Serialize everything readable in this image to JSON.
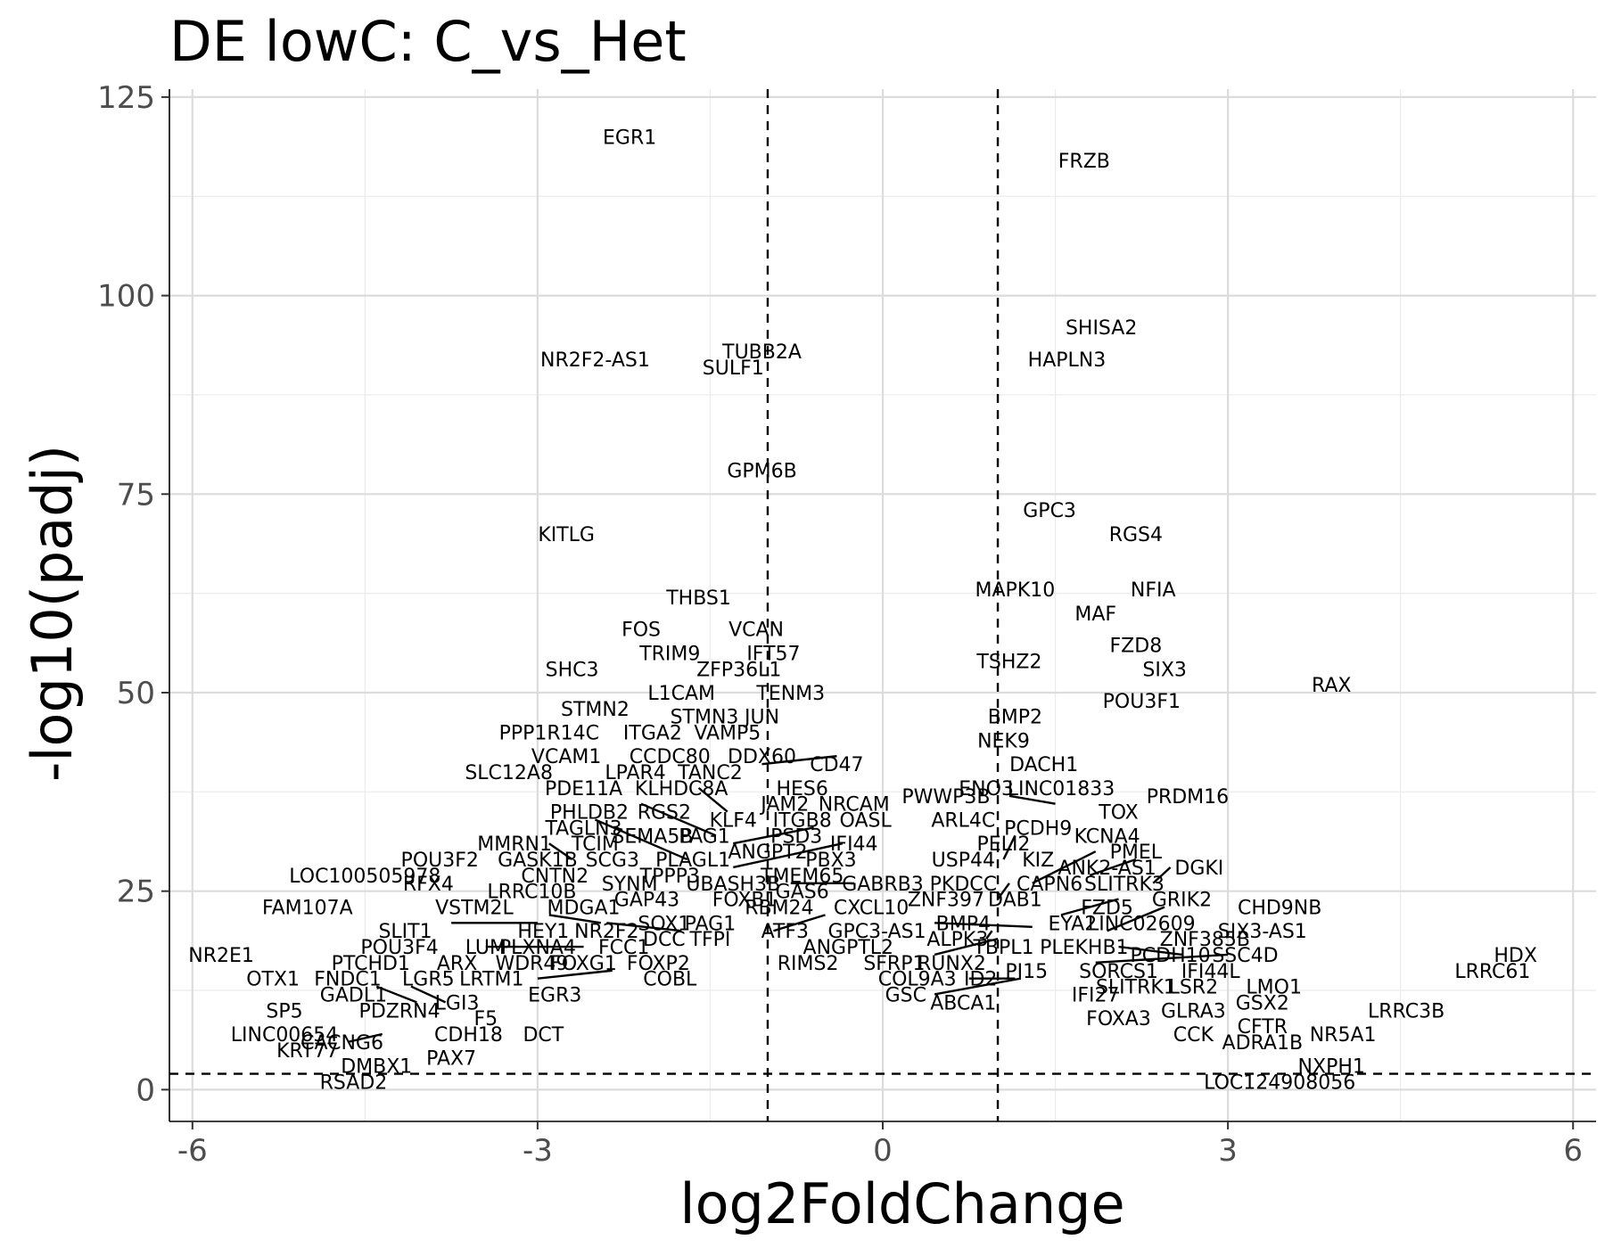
{
  "chart_data": {
    "type": "scatter",
    "title": "DE lowC: C_vs_Het",
    "xlabel": "log2FoldChange",
    "ylabel": "-log10(padj)",
    "xlim": [
      -6.2,
      6.2
    ],
    "ylim": [
      -4,
      126
    ],
    "xticks": [
      -6,
      -3,
      0,
      3,
      6
    ],
    "xtick_labels": [
      "-6",
      "-3",
      "0",
      "3",
      "6"
    ],
    "yticks": [
      0,
      25,
      50,
      75,
      100,
      125
    ],
    "ytick_labels": [
      "0",
      "25",
      "50",
      "75",
      "100",
      "125"
    ],
    "thresholds": {
      "vertical": [
        -1,
        1
      ],
      "horizontal": 2
    },
    "grid": true,
    "legend": "none",
    "points": [
      {
        "gene": "EGR1",
        "x": -2.2,
        "y": 120
      },
      {
        "gene": "FRZB",
        "x": 1.75,
        "y": 117
      },
      {
        "gene": "SHISA2",
        "x": 1.9,
        "y": 96
      },
      {
        "gene": "TUBB2A",
        "x": -1.05,
        "y": 93
      },
      {
        "gene": "NR2F2-AS1",
        "x": -2.5,
        "y": 92
      },
      {
        "gene": "HAPLN3",
        "x": 1.6,
        "y": 92
      },
      {
        "gene": "SULF1",
        "x": -1.3,
        "y": 91
      },
      {
        "gene": "GPM6B",
        "x": -1.05,
        "y": 78
      },
      {
        "gene": "GPC3",
        "x": 1.45,
        "y": 73
      },
      {
        "gene": "RGS4",
        "x": 2.2,
        "y": 70
      },
      {
        "gene": "KITLG",
        "x": -2.75,
        "y": 70
      },
      {
        "gene": "NFIA",
        "x": 2.35,
        "y": 63
      },
      {
        "gene": "MAPK10",
        "x": 1.15,
        "y": 63
      },
      {
        "gene": "THBS1",
        "x": -1.6,
        "y": 62
      },
      {
        "gene": "MAF",
        "x": 1.85,
        "y": 60
      },
      {
        "gene": "FOS",
        "x": -2.1,
        "y": 58
      },
      {
        "gene": "VCAN",
        "x": -1.1,
        "y": 58
      },
      {
        "gene": "FZD8",
        "x": 2.2,
        "y": 56
      },
      {
        "gene": "TRIM9",
        "x": -1.85,
        "y": 55
      },
      {
        "gene": "IFT57",
        "x": -0.95,
        "y": 55
      },
      {
        "gene": "TSHZ2",
        "x": 1.1,
        "y": 54
      },
      {
        "gene": "SIX3",
        "x": 2.45,
        "y": 53
      },
      {
        "gene": "SHC3",
        "x": -2.7,
        "y": 53
      },
      {
        "gene": "ZFP36L1",
        "x": -1.25,
        "y": 53
      },
      {
        "gene": "RAX",
        "x": 3.9,
        "y": 51
      },
      {
        "gene": "L1CAM",
        "x": -1.75,
        "y": 50
      },
      {
        "gene": "TENM3",
        "x": -0.8,
        "y": 50
      },
      {
        "gene": "POU3F1",
        "x": 2.25,
        "y": 49
      },
      {
        "gene": "STMN2",
        "x": -2.5,
        "y": 48
      },
      {
        "gene": "STMN3",
        "x": -1.55,
        "y": 47
      },
      {
        "gene": "JUN",
        "x": -1.05,
        "y": 47
      },
      {
        "gene": "BMP2",
        "x": 1.15,
        "y": 47
      },
      {
        "gene": "PPP1R14C",
        "x": -2.9,
        "y": 45
      },
      {
        "gene": "ITGA2",
        "x": -2.0,
        "y": 45
      },
      {
        "gene": "VAMP5",
        "x": -1.35,
        "y": 45
      },
      {
        "gene": "NEK9",
        "x": 1.05,
        "y": 44
      },
      {
        "gene": "VCAM1",
        "x": -2.75,
        "y": 42
      },
      {
        "gene": "CCDC80",
        "x": -1.85,
        "y": 42
      },
      {
        "gene": "DDX60",
        "x": -1.05,
        "y": 42
      },
      {
        "gene": "DACH1",
        "x": 1.4,
        "y": 41
      },
      {
        "gene": "CD47",
        "x": -0.4,
        "y": 41
      },
      {
        "gene": "SLC12A8",
        "x": -3.25,
        "y": 40
      },
      {
        "gene": "LPAR4",
        "x": -2.15,
        "y": 40
      },
      {
        "gene": "TANC2",
        "x": -1.5,
        "y": 40
      },
      {
        "gene": "HES6",
        "x": -0.7,
        "y": 38
      },
      {
        "gene": "ENO3",
        "x": 0.9,
        "y": 38
      },
      {
        "gene": "LINC01833",
        "x": 1.55,
        "y": 38
      },
      {
        "gene": "PDE11A",
        "x": -2.6,
        "y": 38
      },
      {
        "gene": "KLHDC8A",
        "x": -1.75,
        "y": 38
      },
      {
        "gene": "PRDM16",
        "x": 2.65,
        "y": 37
      },
      {
        "gene": "PWWP3B",
        "x": 0.55,
        "y": 37
      },
      {
        "gene": "JAM2",
        "x": -0.85,
        "y": 36
      },
      {
        "gene": "NRCAM",
        "x": -0.25,
        "y": 36
      },
      {
        "gene": "TOX",
        "x": 2.05,
        "y": 35
      },
      {
        "gene": "PHLDB2",
        "x": -2.55,
        "y": 35
      },
      {
        "gene": "RGS2",
        "x": -1.9,
        "y": 35
      },
      {
        "gene": "KLF4",
        "x": -1.3,
        "y": 34
      },
      {
        "gene": "ITGB8",
        "x": -0.7,
        "y": 34
      },
      {
        "gene": "OASL",
        "x": -0.15,
        "y": 34
      },
      {
        "gene": "ARL4C",
        "x": 0.7,
        "y": 34
      },
      {
        "gene": "TAGLN3",
        "x": -2.6,
        "y": 33
      },
      {
        "gene": "PCDH9",
        "x": 1.35,
        "y": 33
      },
      {
        "gene": "KCNA4",
        "x": 1.95,
        "y": 32
      },
      {
        "gene": "SEMA5B",
        "x": -2.0,
        "y": 32
      },
      {
        "gene": "PAG1",
        "x": -1.55,
        "y": 32
      },
      {
        "gene": "PSD3",
        "x": -0.75,
        "y": 32
      },
      {
        "gene": "IFI44",
        "x": -0.25,
        "y": 31
      },
      {
        "gene": "MMRN1",
        "x": -3.2,
        "y": 31
      },
      {
        "gene": "TCIM",
        "x": -2.5,
        "y": 31
      },
      {
        "gene": "PELI2",
        "x": 1.05,
        "y": 31
      },
      {
        "gene": "PMEL",
        "x": 2.2,
        "y": 30
      },
      {
        "gene": "POU3F2",
        "x": -3.85,
        "y": 29
      },
      {
        "gene": "GASK1B",
        "x": -3.0,
        "y": 29
      },
      {
        "gene": "SCG3",
        "x": -2.35,
        "y": 29
      },
      {
        "gene": "PLAGL1",
        "x": -1.65,
        "y": 29
      },
      {
        "gene": "ANGPT2",
        "x": -1.0,
        "y": 30
      },
      {
        "gene": "PBX3",
        "x": -0.45,
        "y": 29
      },
      {
        "gene": "USP44",
        "x": 0.7,
        "y": 29
      },
      {
        "gene": "KIZ",
        "x": 1.35,
        "y": 29
      },
      {
        "gene": "ANK2-AS1",
        "x": 1.95,
        "y": 28
      },
      {
        "gene": "DGKI",
        "x": 2.75,
        "y": 28
      },
      {
        "gene": "LOC100505978",
        "x": -4.5,
        "y": 27
      },
      {
        "gene": "CNTN2",
        "x": -2.85,
        "y": 27
      },
      {
        "gene": "TPPP3",
        "x": -1.85,
        "y": 27
      },
      {
        "gene": "TMEM65",
        "x": -0.7,
        "y": 27
      },
      {
        "gene": "SYNM",
        "x": -2.2,
        "y": 26
      },
      {
        "gene": "UBASH3B",
        "x": -1.3,
        "y": 26
      },
      {
        "gene": "PKDCC",
        "x": 0.7,
        "y": 26
      },
      {
        "gene": "CAPN6",
        "x": 1.45,
        "y": 26
      },
      {
        "gene": "SLITRK3",
        "x": 2.1,
        "y": 26
      },
      {
        "gene": "RFX4",
        "x": -3.95,
        "y": 26
      },
      {
        "gene": "GABRB3",
        "x": 0.0,
        "y": 26
      },
      {
        "gene": "LRRC10B",
        "x": -3.05,
        "y": 25
      },
      {
        "gene": "GAS6",
        "x": -0.7,
        "y": 25
      },
      {
        "gene": "ZNF397",
        "x": 0.55,
        "y": 24
      },
      {
        "gene": "DAB1",
        "x": 1.15,
        "y": 24
      },
      {
        "gene": "GRIK2",
        "x": 2.6,
        "y": 24
      },
      {
        "gene": "GAP43",
        "x": -2.05,
        "y": 24
      },
      {
        "gene": "FOXB1",
        "x": -1.2,
        "y": 24
      },
      {
        "gene": "CXCL10",
        "x": -0.1,
        "y": 23
      },
      {
        "gene": "FAM107A",
        "x": -5.0,
        "y": 23
      },
      {
        "gene": "CHD9NB",
        "x": 3.45,
        "y": 23
      },
      {
        "gene": "FZD5",
        "x": 1.95,
        "y": 23
      },
      {
        "gene": "VSTM2L",
        "x": -3.55,
        "y": 23
      },
      {
        "gene": "MDGA1",
        "x": -2.6,
        "y": 23
      },
      {
        "gene": "RBM24",
        "x": -0.9,
        "y": 23
      },
      {
        "gene": "EYA2",
        "x": 1.65,
        "y": 21
      },
      {
        "gene": "LINC02609",
        "x": 2.25,
        "y": 21
      },
      {
        "gene": "BMP4",
        "x": 0.7,
        "y": 21
      },
      {
        "gene": "SOX1",
        "x": -1.9,
        "y": 21
      },
      {
        "gene": "PAG1",
        "x": -1.5,
        "y": 21
      },
      {
        "gene": "SLIT1",
        "x": -4.15,
        "y": 20
      },
      {
        "gene": "HEY1",
        "x": -2.95,
        "y": 20
      },
      {
        "gene": "NR2F2",
        "x": -2.4,
        "y": 20
      },
      {
        "gene": "ATF3",
        "x": -0.85,
        "y": 20
      },
      {
        "gene": "GPC3-AS1",
        "x": -0.05,
        "y": 20
      },
      {
        "gene": "SIX3-AS1",
        "x": 3.3,
        "y": 20
      },
      {
        "gene": "ZNF385B",
        "x": 2.8,
        "y": 19
      },
      {
        "gene": "DCC",
        "x": -1.9,
        "y": 19
      },
      {
        "gene": "TFPI",
        "x": -1.5,
        "y": 19
      },
      {
        "gene": "ALPK3",
        "x": 0.65,
        "y": 19
      },
      {
        "gene": "POU3F4",
        "x": -4.2,
        "y": 18
      },
      {
        "gene": "LUM",
        "x": -3.45,
        "y": 18
      },
      {
        "gene": "PLXNA4",
        "x": -3.0,
        "y": 18
      },
      {
        "gene": "FCC1",
        "x": -2.25,
        "y": 18
      },
      {
        "gene": "ANGPTL2",
        "x": -0.3,
        "y": 18
      },
      {
        "gene": "TBPL1",
        "x": 1.05,
        "y": 18
      },
      {
        "gene": "PLEKHB1",
        "x": 1.75,
        "y": 18
      },
      {
        "gene": "PCDH10",
        "x": 2.5,
        "y": 17
      },
      {
        "gene": "SSC4D",
        "x": 3.15,
        "y": 17
      },
      {
        "gene": "NR2E1",
        "x": -5.75,
        "y": 17
      },
      {
        "gene": "HDX",
        "x": 5.5,
        "y": 17
      },
      {
        "gene": "FOXP2",
        "x": -1.95,
        "y": 16
      },
      {
        "gene": "RIMS2",
        "x": -0.65,
        "y": 16
      },
      {
        "gene": "SFRP1",
        "x": 0.1,
        "y": 16
      },
      {
        "gene": "RUNX2",
        "x": 0.6,
        "y": 16
      },
      {
        "gene": "PTCHD1",
        "x": -4.45,
        "y": 16
      },
      {
        "gene": "ARX",
        "x": -3.7,
        "y": 16
      },
      {
        "gene": "WDR49",
        "x": -3.05,
        "y": 16
      },
      {
        "gene": "FOXG1",
        "x": -2.6,
        "y": 16
      },
      {
        "gene": "PI15",
        "x": 1.25,
        "y": 15
      },
      {
        "gene": "IFI44L",
        "x": 2.85,
        "y": 15
      },
      {
        "gene": "SORCS1",
        "x": 2.05,
        "y": 15
      },
      {
        "gene": "LRRC61",
        "x": 5.3,
        "y": 15
      },
      {
        "gene": "COBL",
        "x": -1.85,
        "y": 14
      },
      {
        "gene": "OTX1",
        "x": -5.3,
        "y": 14
      },
      {
        "gene": "FNDC1",
        "x": -4.65,
        "y": 14
      },
      {
        "gene": "LGR5",
        "x": -3.95,
        "y": 14
      },
      {
        "gene": "LRTM1",
        "x": -3.4,
        "y": 14
      },
      {
        "gene": "COL9A3",
        "x": 0.3,
        "y": 14
      },
      {
        "gene": "ID2",
        "x": 0.85,
        "y": 14
      },
      {
        "gene": "GADL1",
        "x": -4.6,
        "y": 12
      },
      {
        "gene": "EGR3",
        "x": -2.85,
        "y": 12
      },
      {
        "gene": "SLITRK1",
        "x": 2.2,
        "y": 13
      },
      {
        "gene": "LSR2",
        "x": 2.7,
        "y": 13
      },
      {
        "gene": "LMO1",
        "x": 3.4,
        "y": 13
      },
      {
        "gene": "IFI27",
        "x": 1.85,
        "y": 12
      },
      {
        "gene": "GSC",
        "x": 0.2,
        "y": 12
      },
      {
        "gene": "ABCA1",
        "x": 0.7,
        "y": 11
      },
      {
        "gene": "LGI3",
        "x": -3.7,
        "y": 11
      },
      {
        "gene": "GSX2",
        "x": 3.3,
        "y": 11
      },
      {
        "gene": "SP5",
        "x": -5.2,
        "y": 10
      },
      {
        "gene": "PDZRN4",
        "x": -4.2,
        "y": 10
      },
      {
        "gene": "F5",
        "x": -3.45,
        "y": 9
      },
      {
        "gene": "GLRA3",
        "x": 2.7,
        "y": 10
      },
      {
        "gene": "LRRC3B",
        "x": 4.55,
        "y": 10
      },
      {
        "gene": "FOXA3",
        "x": 2.05,
        "y": 9
      },
      {
        "gene": "CFTR",
        "x": 3.3,
        "y": 8
      },
      {
        "gene": "LINC00654",
        "x": -5.2,
        "y": 7
      },
      {
        "gene": "CDH18",
        "x": -3.6,
        "y": 7
      },
      {
        "gene": "DCT",
        "x": -2.95,
        "y": 7
      },
      {
        "gene": "CCK",
        "x": 2.7,
        "y": 7
      },
      {
        "gene": "NR5A1",
        "x": 4.0,
        "y": 7
      },
      {
        "gene": "ADRA1B",
        "x": 3.3,
        "y": 6
      },
      {
        "gene": "CACNG6",
        "x": -4.7,
        "y": 6
      },
      {
        "gene": "KRT77",
        "x": -5.0,
        "y": 5
      },
      {
        "gene": "PAX7",
        "x": -3.75,
        "y": 4
      },
      {
        "gene": "DMBX1",
        "x": -4.4,
        "y": 3
      },
      {
        "gene": "NXPH1",
        "x": 3.9,
        "y": 3
      },
      {
        "gene": "RSAD2",
        "x": -4.6,
        "y": 1
      },
      {
        "gene": "LOC124908056",
        "x": 3.45,
        "y": 1
      }
    ]
  }
}
